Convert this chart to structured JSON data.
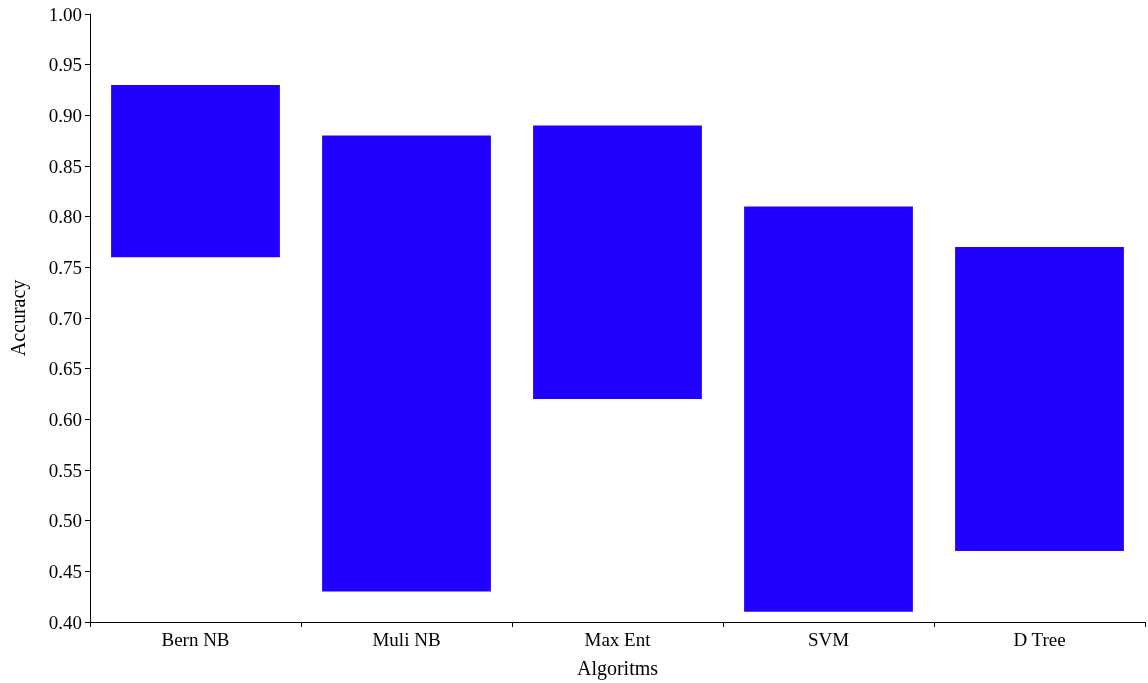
{
  "chart_data": {
    "type": "bar",
    "xlabel": "Algoritms",
    "ylabel": "Accuracy",
    "categories": [
      "Bern NB",
      "Muli NB",
      "Max Ent",
      "SVM",
      "D Tree"
    ],
    "base": [
      0.76,
      0.43,
      0.62,
      0.41,
      0.47
    ],
    "values": [
      0.17,
      0.45,
      0.27,
      0.4,
      0.3
    ],
    "color": "#2200ff",
    "ylim": [
      0.4,
      1.0
    ],
    "yticks": [
      {
        "value": 0.4,
        "label": "0.40"
      },
      {
        "value": 0.45,
        "label": "0.45"
      },
      {
        "value": 0.5,
        "label": "0.50"
      },
      {
        "value": 0.55,
        "label": "0.55"
      },
      {
        "value": 0.6,
        "label": "0.60"
      },
      {
        "value": 0.65,
        "label": "0.65"
      },
      {
        "value": 0.7,
        "label": "0.70"
      },
      {
        "value": 0.75,
        "label": "0.75"
      },
      {
        "value": 0.8,
        "label": "0.80"
      },
      {
        "value": 0.85,
        "label": "0.85"
      },
      {
        "value": 0.9,
        "label": "0.90"
      },
      {
        "value": 0.95,
        "label": "0.95"
      },
      {
        "value": 1.0,
        "label": "1.00"
      }
    ],
    "grid": false
  }
}
